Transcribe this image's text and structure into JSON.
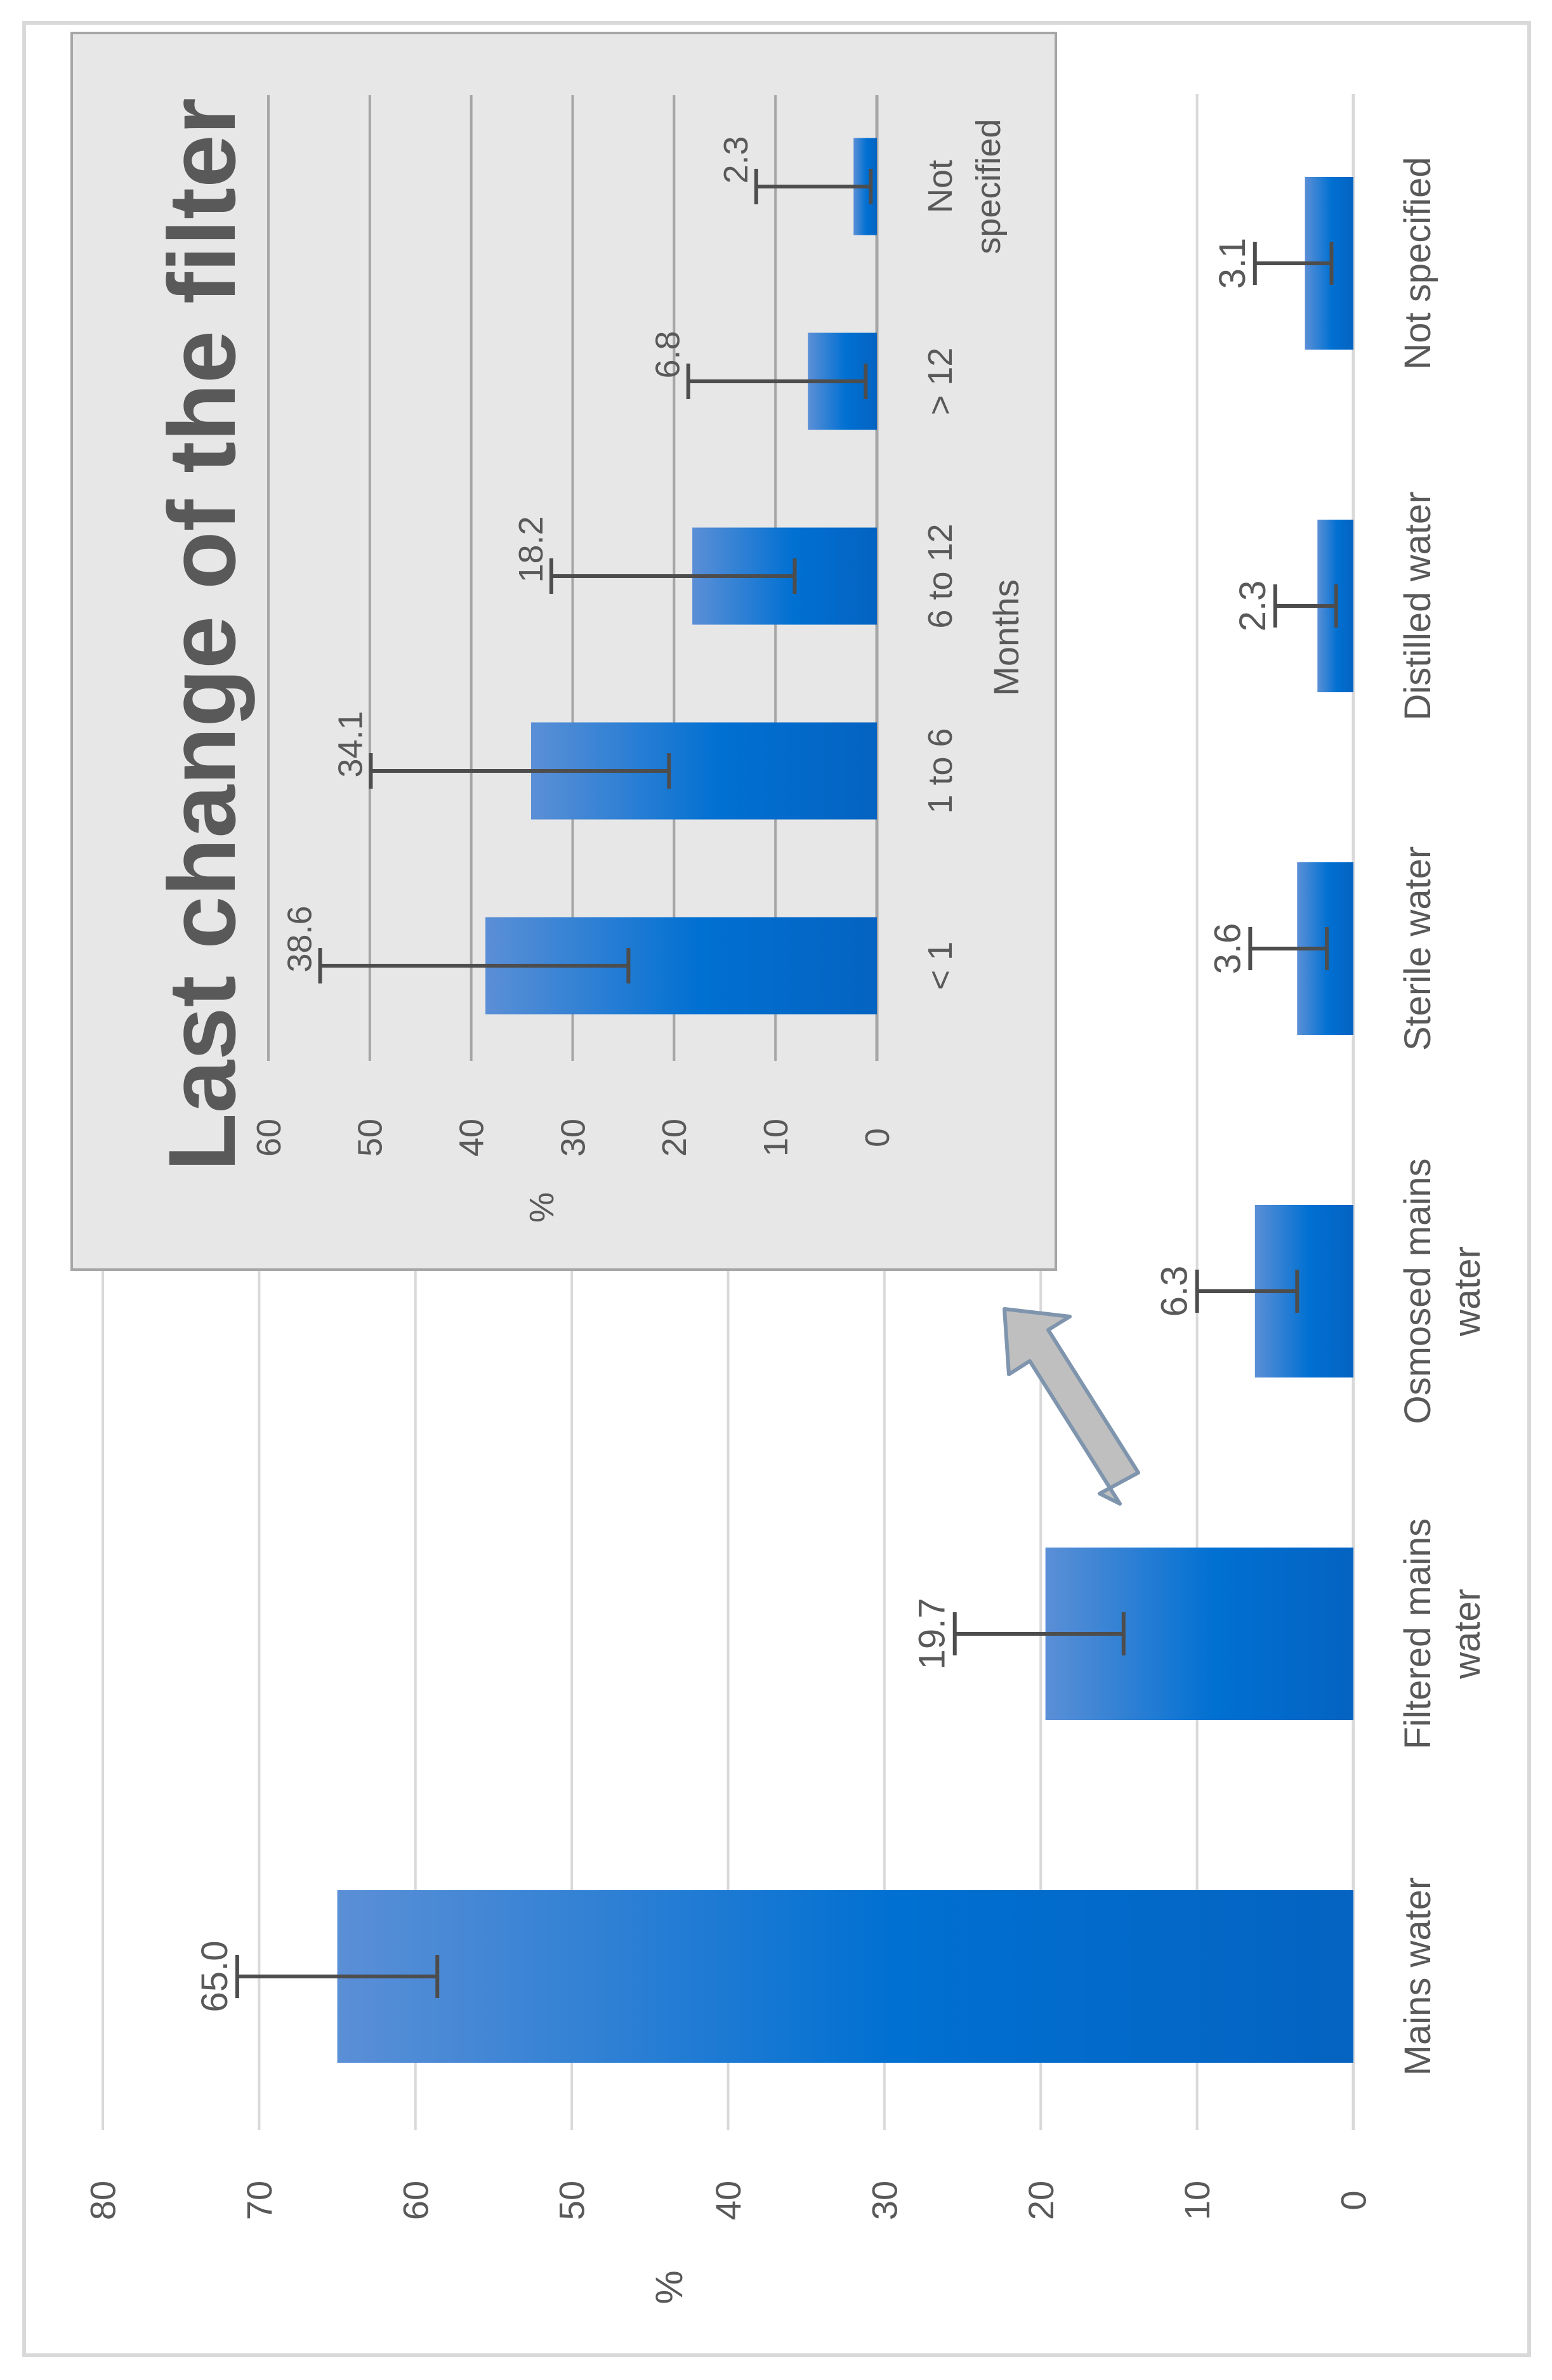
{
  "colors": {
    "bar_dark": "#0563c1",
    "bar_light": "#5b8fd6",
    "error_bar": "#4d4d4d",
    "grid_main": "#d9d9d9",
    "grid_inset": "#a6a6a6",
    "inset_bg": "#e7e7e7",
    "arrow_fill": "#bfbfbf",
    "arrow_stroke": "#7f95ad",
    "text": "#595959"
  },
  "chart_data": [
    {
      "type": "bar",
      "orientation": "rotated 90 degrees counter-clockwise",
      "ylabel": "%",
      "ylim": [
        0,
        80
      ],
      "yticks": [
        "0",
        "10",
        "20",
        "30",
        "40",
        "50",
        "60",
        "70",
        "80"
      ],
      "grid": true,
      "categories": [
        [
          "Mains water"
        ],
        [
          "Filtered mains",
          "water"
        ],
        [
          "Osmosed mains",
          "water"
        ],
        [
          "Sterile water"
        ],
        [
          "Distilled water"
        ],
        [
          "Not specified"
        ]
      ],
      "values": [
        65.0,
        19.7,
        6.3,
        3.6,
        2.3,
        3.1
      ],
      "value_labels": [
        "65.0",
        "19.7",
        "6.3",
        "3.6",
        "2.3",
        "3.1"
      ],
      "error_low": [
        58.6,
        14.7,
        3.6,
        1.7,
        1.1,
        1.4
      ],
      "error_high": [
        71.4,
        25.5,
        10.0,
        6.6,
        5.0,
        6.3
      ]
    },
    {
      "type": "bar",
      "orientation": "rotated 90 degrees counter-clockwise",
      "title": "Last change of the filter",
      "xlabel": "Months",
      "ylabel": "%",
      "ylim": [
        0,
        60
      ],
      "yticks": [
        "0",
        "10",
        "20",
        "30",
        "40",
        "50",
        "60"
      ],
      "grid": true,
      "categories": [
        [
          "< 1"
        ],
        [
          "1 to 6"
        ],
        [
          "6 to 12"
        ],
        [
          "> 12"
        ],
        [
          "Not",
          "specified"
        ]
      ],
      "values": [
        38.6,
        34.1,
        18.2,
        6.8,
        2.3
      ],
      "value_labels": [
        "38.6",
        "34.1",
        "18.2",
        "6.8",
        "2.3"
      ],
      "error_low": [
        24.5,
        20.5,
        8.1,
        1.1,
        0.6
      ],
      "error_high": [
        54.9,
        49.9,
        32.1,
        18.6,
        11.9
      ]
    }
  ]
}
